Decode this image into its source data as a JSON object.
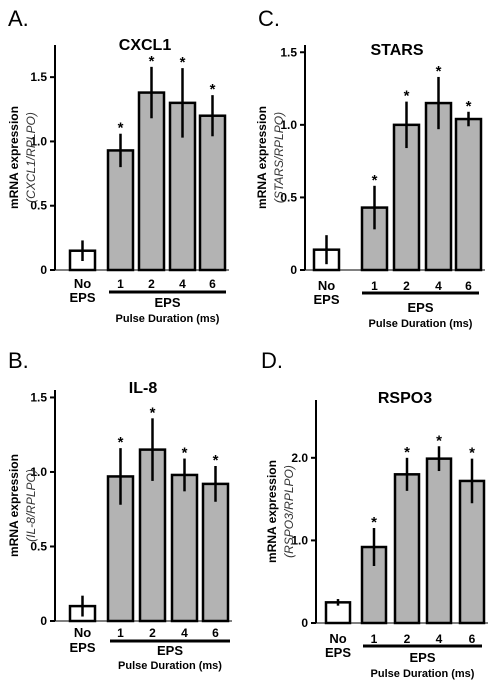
{
  "chart_data": [
    {
      "panel_letter": "A.",
      "type": "bar",
      "title": "CXCL1",
      "ylabel_main": "mRNA expression",
      "ylabel_sub": "(CXCL1/RPLPO)",
      "categories": [
        "No EPS",
        "1",
        "2",
        "4",
        "6"
      ],
      "control_label": [
        "No",
        "EPS"
      ],
      "group_label": "EPS",
      "group_sublabel": "Pulse Duration (ms)",
      "values": [
        0.15,
        0.93,
        1.38,
        1.3,
        1.2
      ],
      "errors": [
        0.08,
        0.13,
        0.2,
        0.27,
        0.16
      ],
      "significant": [
        false,
        true,
        true,
        true,
        true
      ],
      "ylim": [
        0,
        1.75
      ],
      "yticks": [
        0,
        0.5,
        1.0,
        1.5
      ],
      "ytick_labels": [
        "0",
        "0.5",
        "1.0",
        "1.5"
      ],
      "control_color": "#ffffff",
      "bar_color": "#b3b3b3"
    },
    {
      "panel_letter": "C.",
      "type": "bar",
      "title": "STARS",
      "ylabel_main": "mRNA expression",
      "ylabel_sub": "(STARS/RPLPO)",
      "categories": [
        "No EPS",
        "1",
        "2",
        "4",
        "6"
      ],
      "control_label": [
        "No",
        "EPS"
      ],
      "group_label": "EPS",
      "group_sublabel": "Pulse Duration (ms)",
      "values": [
        0.14,
        0.43,
        1.0,
        1.15,
        1.04
      ],
      "errors": [
        0.1,
        0.15,
        0.16,
        0.18,
        0.05
      ],
      "significant": [
        false,
        true,
        true,
        true,
        true
      ],
      "ylim": [
        0,
        1.55
      ],
      "yticks": [
        0,
        0.5,
        1.0,
        1.5
      ],
      "ytick_labels": [
        "0",
        "0.5",
        "1.0",
        "1.5"
      ],
      "control_color": "#ffffff",
      "bar_color": "#b3b3b3"
    },
    {
      "panel_letter": "B.",
      "type": "bar",
      "title": "IL-8",
      "ylabel_main": "mRNA expression",
      "ylabel_sub": "(IL-8/RPLPO)",
      "categories": [
        "No EPS",
        "1",
        "2",
        "4",
        "6"
      ],
      "control_label": [
        "No",
        "EPS"
      ],
      "group_label": "EPS",
      "group_sublabel": "Pulse Duration (ms)",
      "values": [
        0.1,
        0.97,
        1.15,
        0.98,
        0.92
      ],
      "errors": [
        0.07,
        0.19,
        0.21,
        0.11,
        0.12
      ],
      "significant": [
        false,
        true,
        true,
        true,
        true
      ],
      "ylim": [
        0,
        1.55
      ],
      "yticks": [
        0,
        0.5,
        1.0,
        1.5
      ],
      "ytick_labels": [
        "0",
        "0.5",
        "1.0",
        "1.5"
      ],
      "control_color": "#ffffff",
      "bar_color": "#b3b3b3"
    },
    {
      "panel_letter": "D.",
      "type": "bar",
      "title": "RSPO3",
      "ylabel_main": "mRNA expression",
      "ylabel_sub": "(RSPO3/RPLPO)",
      "categories": [
        "No EPS",
        "1",
        "2",
        "4",
        "6"
      ],
      "control_label": [
        "No",
        "EPS"
      ],
      "group_label": "EPS",
      "group_sublabel": "Pulse Duration (ms)",
      "values": [
        0.25,
        0.92,
        1.8,
        1.99,
        1.72
      ],
      "errors": [
        0.04,
        0.23,
        0.2,
        0.15,
        0.27
      ],
      "significant": [
        false,
        true,
        true,
        true,
        true
      ],
      "ylim": [
        0,
        2.7
      ],
      "yticks": [
        0,
        1.0,
        2.0
      ],
      "ytick_labels": [
        "0",
        "1.0",
        "2.0"
      ],
      "control_color": "#ffffff",
      "bar_color": "#b3b3b3"
    }
  ]
}
